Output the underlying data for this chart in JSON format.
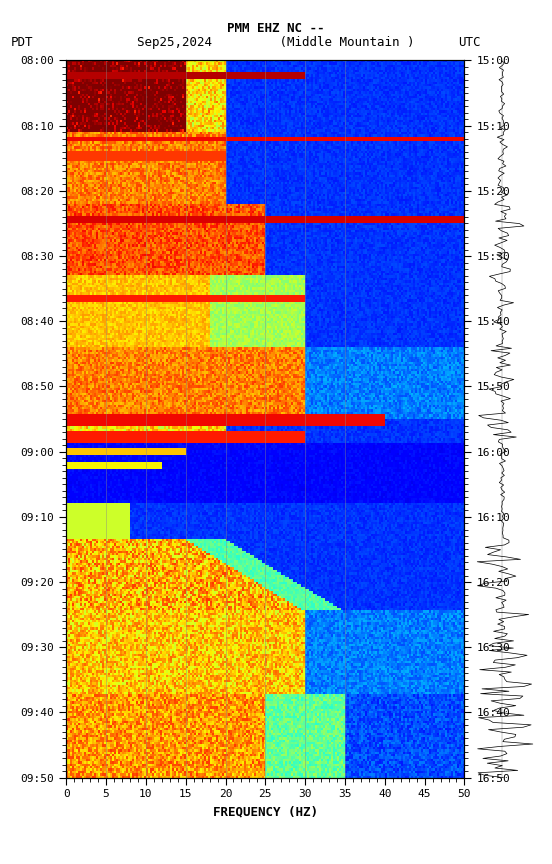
{
  "title_line1": "PMM EHZ NC --",
  "title_line2": "Sep25,2024         (Middle Mountain )",
  "title_left": "PDT",
  "title_right": "UTC",
  "xlabel": "FREQUENCY (HZ)",
  "freq_min": 0,
  "freq_max": 50,
  "freq_ticks": [
    0,
    5,
    10,
    15,
    20,
    25,
    30,
    35,
    40,
    45,
    50
  ],
  "time_labels_left": [
    "08:00",
    "08:10",
    "08:20",
    "08:30",
    "08:40",
    "08:50",
    "09:00",
    "09:10",
    "09:20",
    "09:30",
    "09:40",
    "09:50"
  ],
  "time_labels_right": [
    "15:00",
    "15:10",
    "15:20",
    "15:30",
    "15:40",
    "15:50",
    "16:00",
    "16:10",
    "16:20",
    "16:30",
    "16:40",
    "16:50"
  ],
  "vlines_freq": [
    5,
    10,
    15,
    20,
    25,
    30,
    35
  ],
  "background_color": "#ffffff",
  "spectrogram_colormap": "jet",
  "fig_width": 5.52,
  "fig_height": 8.64,
  "dpi": 100
}
